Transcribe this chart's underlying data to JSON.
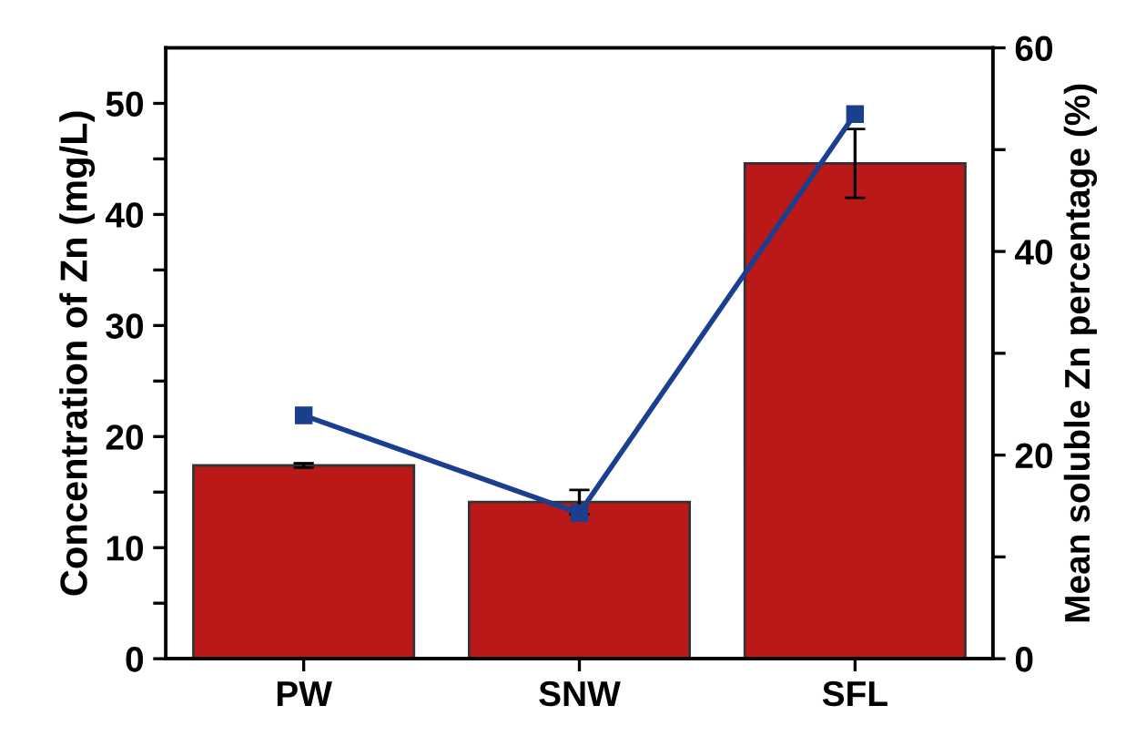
{
  "chart_data": {
    "type": "bar",
    "ylabel": "Concentration of Zn (mg/L)",
    "y2label": "Mean soluble Zn percentage (%)",
    "categories": [
      "PW",
      "SNW",
      "SFL"
    ],
    "series": [
      {
        "color": "#bb1818",
        "values": [
          17.4,
          14.1,
          44.6
        ],
        "errors": [
          0.2,
          1.1,
          3.1
        ]
      },
      {
        "type": "line",
        "axis": "y2",
        "color": "#1a3f8f",
        "values": [
          23.9,
          14.3,
          53.5
        ],
        "marker": "square"
      }
    ],
    "ylim": [
      0,
      55
    ],
    "yticks": [
      0,
      {
        "value": 5,
        "label": null
      },
      10,
      {
        "value": 15,
        "label": null
      },
      20,
      {
        "value": 25,
        "label": null
      },
      30,
      {
        "value": 35,
        "label": null
      },
      40,
      {
        "value": 45,
        "label": null
      },
      50
    ],
    "y2lim": [
      0,
      60
    ],
    "y2ticks": [
      0,
      {
        "value": 10,
        "label": null
      },
      20,
      {
        "value": 30,
        "label": null
      },
      40,
      {
        "value": 50,
        "label": null
      },
      60
    ],
    "grid": false,
    "legend": false
  }
}
